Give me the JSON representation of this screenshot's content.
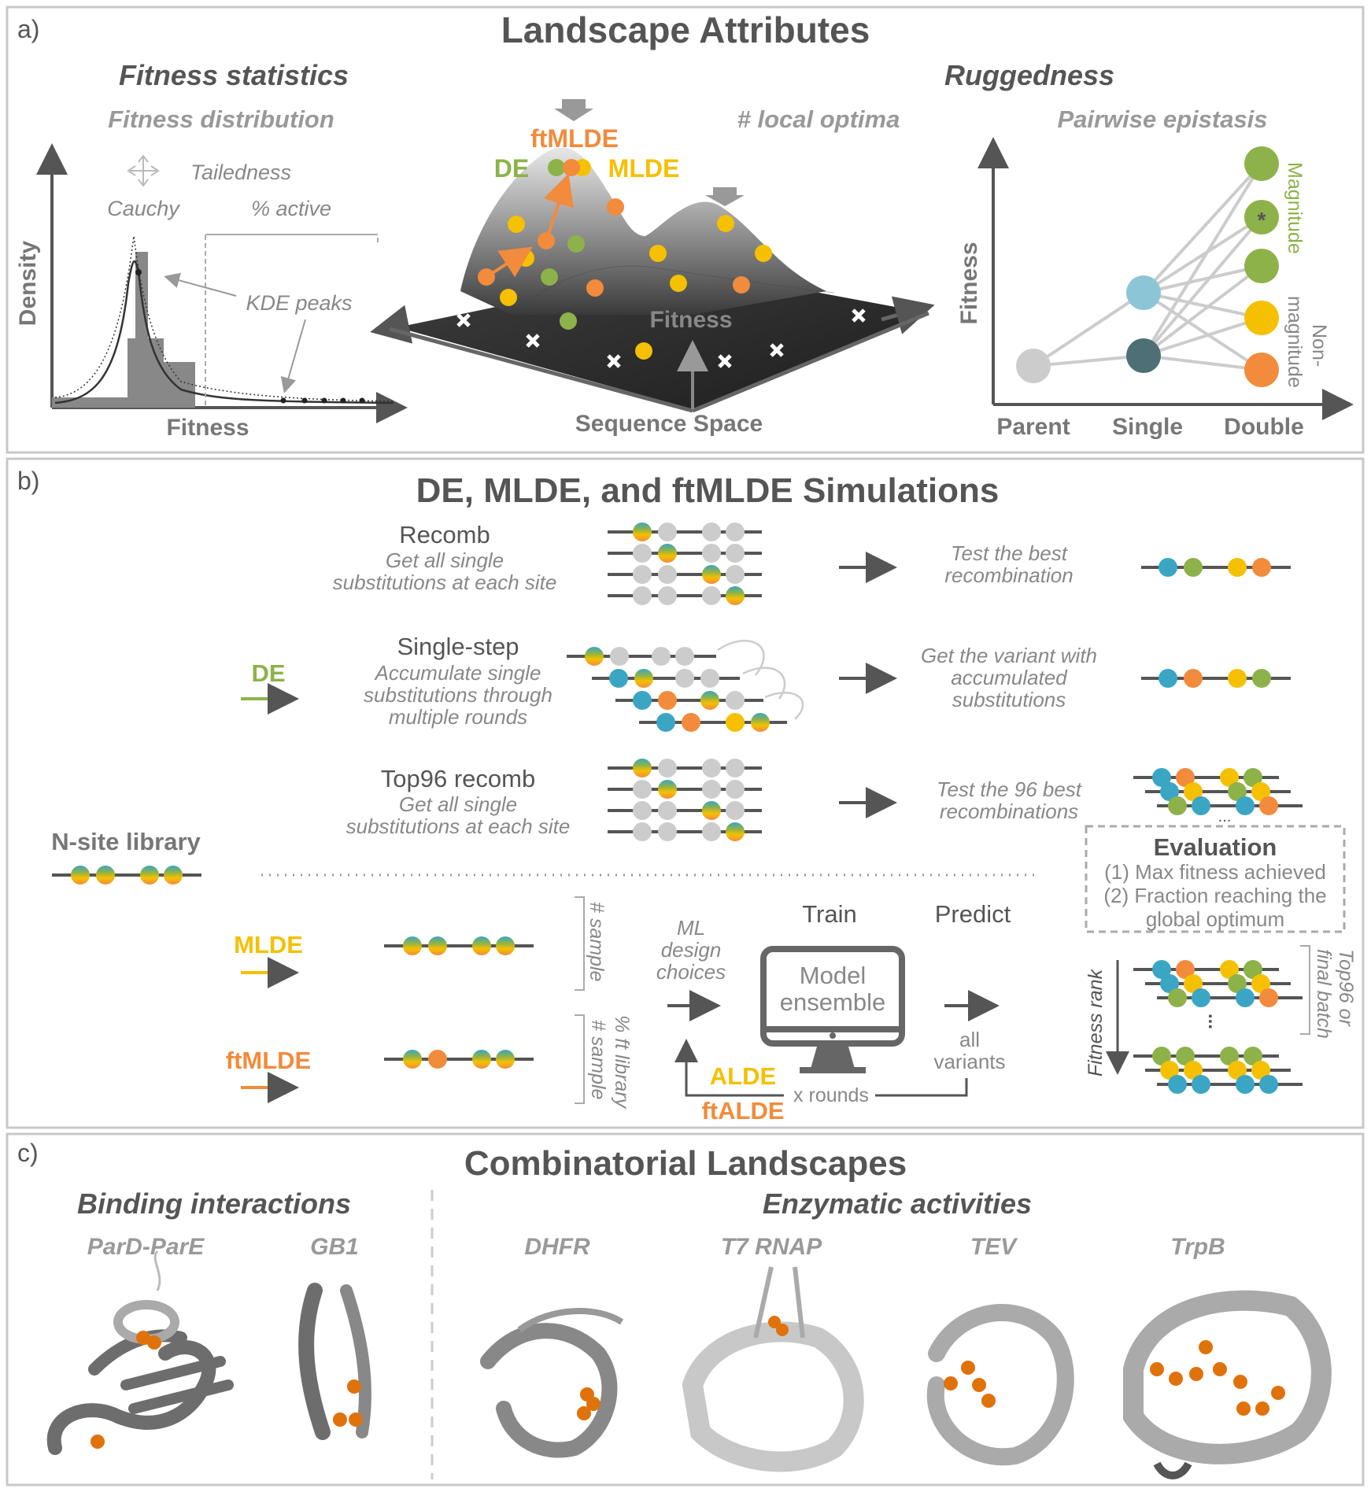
{
  "colors": {
    "dark": "#555555",
    "grey": "#8c8c8c",
    "light_grey": "#cccccc",
    "green": "#8db24a",
    "yellow": "#f5c000",
    "orange": "#f28b3c",
    "teal": "#3aa6c4",
    "light_teal": "#8cc6d6",
    "dark_teal": "#4f6f77",
    "protein_dark": "#6d6d6d",
    "protein_light": "#c8c8c8",
    "residue": "#e0720c"
  },
  "panel_a": {
    "label": "a)",
    "title": "Landscape Attributes",
    "fitness_statistics": {
      "heading": "Fitness statistics",
      "subheading": "Fitness distribution",
      "tailedness": "Tailedness",
      "cauchy": "Cauchy",
      "active": "% active",
      "kde_peaks": "KDE peaks",
      "y_label": "Density",
      "x_label": "Fitness"
    },
    "landscape": {
      "subheading": "# local optima",
      "ftmlde": "ftMLDE",
      "de": "DE",
      "mlde": "MLDE",
      "fitness_axis": "Fitness",
      "sequence_space": "Sequence Space"
    },
    "ruggedness": {
      "heading": "Ruggedness",
      "subheading": "Pairwise epistasis",
      "y_label": "Fitness",
      "magnitude": "Magnitude",
      "non": "Non-",
      "non_magnitude": "magnitude",
      "star": "*",
      "x_ticks": [
        "Parent",
        "Single",
        "Double"
      ]
    }
  },
  "panel_b": {
    "label": "b)",
    "title": "DE, MLDE, and ftMLDE Simulations",
    "recomb": {
      "title": "Recomb",
      "desc1": "Get all single",
      "desc2": "substitutions at each site",
      "result1": "Test the best",
      "result2": "recombination"
    },
    "single_step": {
      "title": "Single-step",
      "desc1": "Accumulate single",
      "desc2": "substitutions through",
      "desc3": "multiple rounds",
      "result1": "Get the variant with",
      "result2": "accumulated",
      "result3": "substitutions"
    },
    "top96": {
      "title": "Top96 recomb",
      "desc1": "Get all single",
      "desc2": "substitutions at each site",
      "result1": "Test the 96 best",
      "result2": "recombinations",
      "ellipsis": "..."
    },
    "de_label": "DE",
    "nsite": "N-site library",
    "evaluation": {
      "title": "Evaluation",
      "line1": "(1) Max fitness achieved",
      "line2": "(2) Fraction reaching the",
      "line3": "global optimum"
    },
    "mlde_label": "MLDE",
    "ftmlde_label": "ftMLDE",
    "sample": "# sample",
    "ft_library": "% ft library",
    "ml_choices1": "ML",
    "ml_choices2": "design",
    "ml_choices3": "choices",
    "train": "Train",
    "predict": "Predict",
    "model1": "Model",
    "model2": "ensemble",
    "all": "all",
    "variants": "variants",
    "alde": "ALDE",
    "ftalde": "ftALDE",
    "rounds": "x rounds",
    "fitness_rank": "Fitness rank",
    "top96_final1": "Top96 or",
    "top96_final2": "final batch",
    "dots": "..."
  },
  "panel_c": {
    "label": "c)",
    "title": "Combinatorial Landscapes",
    "binding": "Binding interactions",
    "enzymatic": "Enzymatic activities",
    "proteins": [
      "ParD-ParE",
      "GB1",
      "DHFR",
      "T7 RNAP",
      "TEV",
      "TrpB"
    ]
  }
}
